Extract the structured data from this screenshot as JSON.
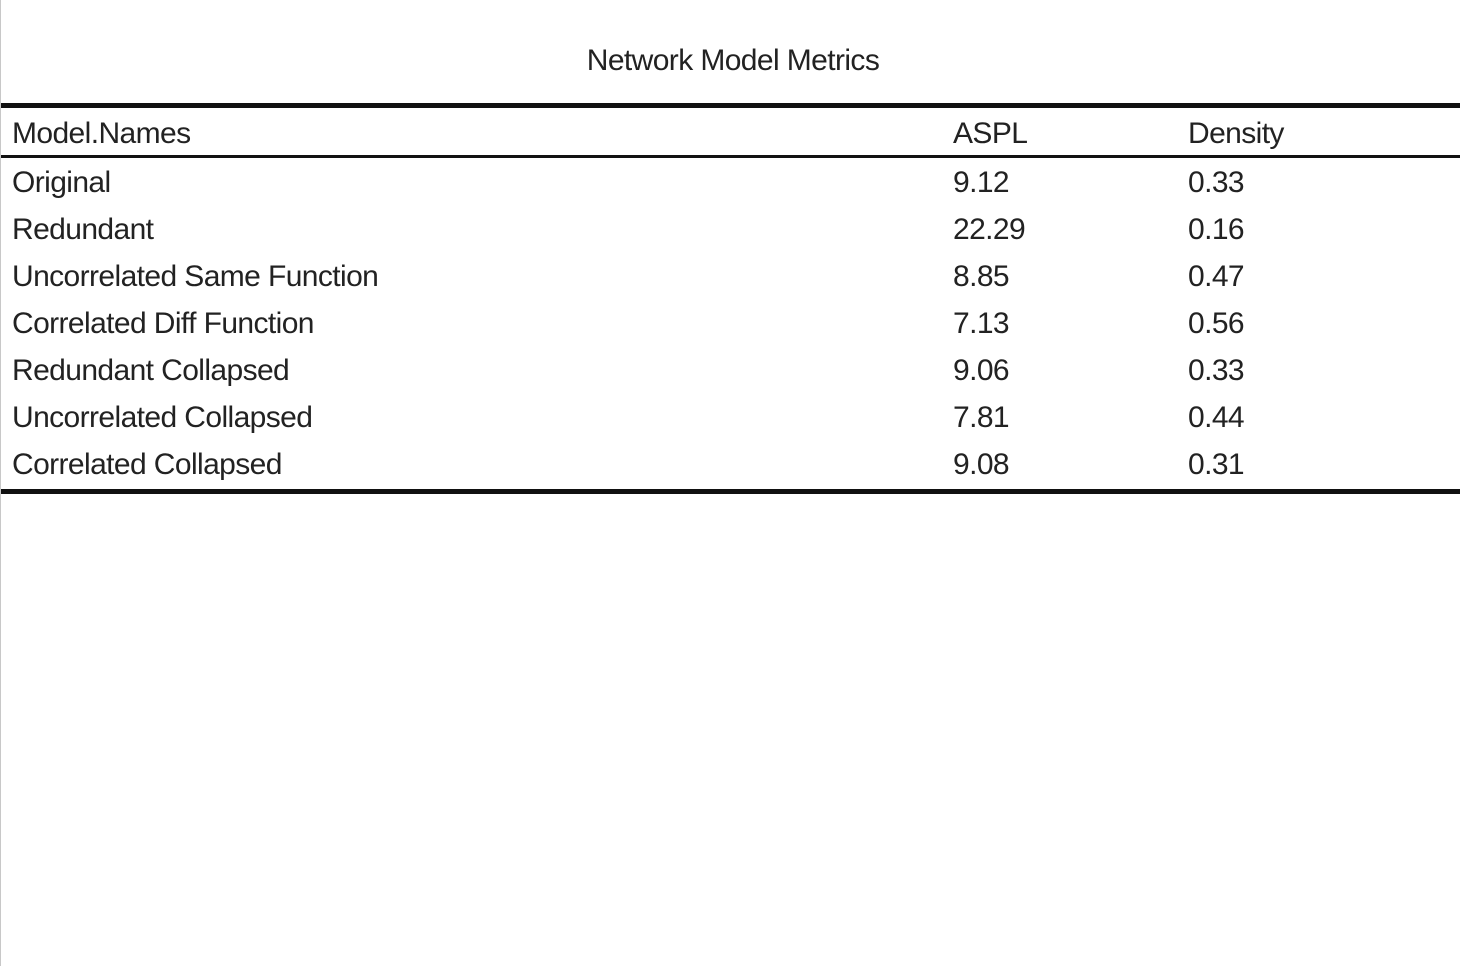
{
  "table": {
    "title": "Network Model Metrics",
    "columns": [
      "Model.Names",
      "ASPL",
      "Density"
    ],
    "rows": [
      [
        "Original",
        "9.12",
        "0.33"
      ],
      [
        "Redundant",
        "22.29",
        "0.16"
      ],
      [
        "Uncorrelated Same Function",
        "8.85",
        "0.47"
      ],
      [
        "Correlated Diff Function",
        "7.13",
        "0.56"
      ],
      [
        "Redundant Collapsed",
        "9.06",
        "0.33"
      ],
      [
        "Uncorrelated Collapsed",
        "7.81",
        "0.44"
      ],
      [
        "Correlated Collapsed",
        "9.08",
        "0.31"
      ]
    ]
  }
}
